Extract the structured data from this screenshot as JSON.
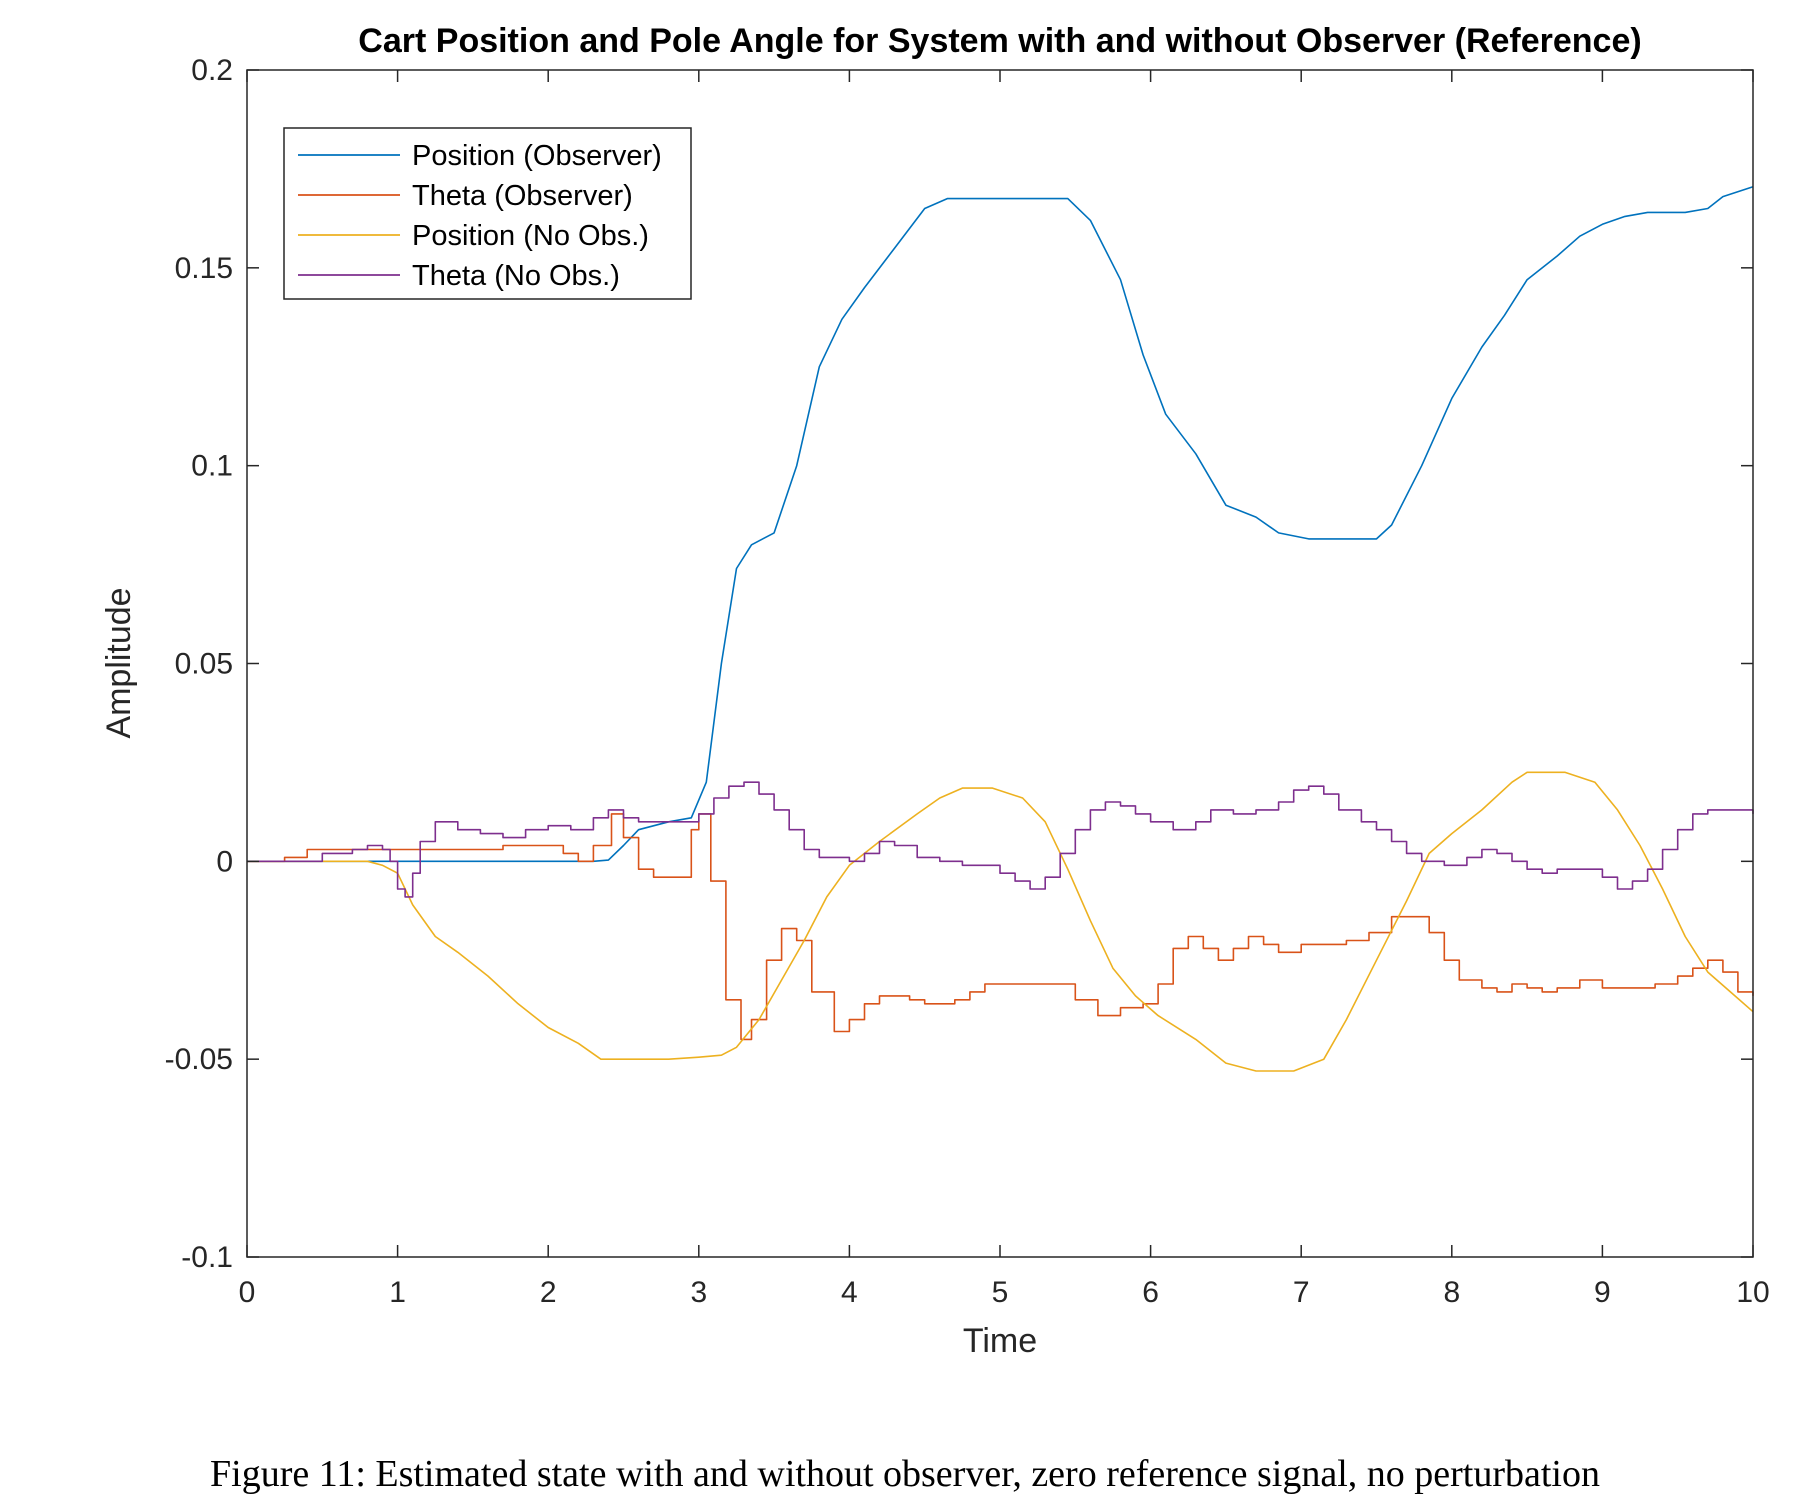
{
  "chart_data": {
    "type": "line",
    "title": "Cart Position and Pole Angle for System with and without Observer (Reference)",
    "xlabel": "Time",
    "ylabel": "Amplitude",
    "xlim": [
      0,
      10
    ],
    "ylim": [
      -0.1,
      0.2
    ],
    "xticks": [
      0,
      1,
      2,
      3,
      4,
      5,
      6,
      7,
      8,
      9,
      10
    ],
    "yticks": [
      -0.1,
      -0.05,
      0,
      0.05,
      0.1,
      0.15,
      0.2
    ],
    "x_tick_labels": [
      "0",
      "1",
      "2",
      "3",
      "4",
      "5",
      "6",
      "7",
      "8",
      "9",
      "10"
    ],
    "y_tick_labels": [
      "-0.1",
      "-0.05",
      "0",
      "0.05",
      "0.1",
      "0.15",
      "0.2"
    ],
    "grid": false,
    "legend_position": "top-left",
    "series": [
      {
        "name": "Position (Observer)",
        "color": "#0072BD",
        "step": false,
        "points": [
          [
            0,
            0
          ],
          [
            2.3,
            0
          ],
          [
            2.4,
            0.0003
          ],
          [
            2.5,
            0.004
          ],
          [
            2.6,
            0.008
          ],
          [
            2.8,
            0.01
          ],
          [
            2.95,
            0.011
          ],
          [
            3.05,
            0.02
          ],
          [
            3.15,
            0.05
          ],
          [
            3.25,
            0.074
          ],
          [
            3.35,
            0.08
          ],
          [
            3.5,
            0.083
          ],
          [
            3.65,
            0.1
          ],
          [
            3.8,
            0.125
          ],
          [
            3.95,
            0.137
          ],
          [
            4.1,
            0.145
          ],
          [
            4.3,
            0.155
          ],
          [
            4.5,
            0.165
          ],
          [
            4.65,
            0.1675
          ],
          [
            4.8,
            0.1675
          ],
          [
            5.45,
            0.1675
          ],
          [
            5.6,
            0.162
          ],
          [
            5.8,
            0.147
          ],
          [
            5.95,
            0.128
          ],
          [
            6.1,
            0.113
          ],
          [
            6.3,
            0.103
          ],
          [
            6.5,
            0.09
          ],
          [
            6.7,
            0.087
          ],
          [
            6.85,
            0.083
          ],
          [
            7.05,
            0.0815
          ],
          [
            7.5,
            0.0815
          ],
          [
            7.6,
            0.085
          ],
          [
            7.8,
            0.1
          ],
          [
            8.0,
            0.117
          ],
          [
            8.2,
            0.13
          ],
          [
            8.35,
            0.138
          ],
          [
            8.5,
            0.147
          ],
          [
            8.7,
            0.153
          ],
          [
            8.85,
            0.158
          ],
          [
            9.0,
            0.161
          ],
          [
            9.15,
            0.163
          ],
          [
            9.3,
            0.164
          ],
          [
            9.55,
            0.164
          ],
          [
            9.7,
            0.165
          ],
          [
            9.8,
            0.168
          ],
          [
            10,
            0.1705
          ]
        ]
      },
      {
        "name": "Theta (Observer)",
        "color": "#D95319",
        "step": true,
        "points": [
          [
            0,
            0
          ],
          [
            0.25,
            0.001
          ],
          [
            0.4,
            0.003
          ],
          [
            1.0,
            0.003
          ],
          [
            1.3,
            0.003
          ],
          [
            1.5,
            0.003
          ],
          [
            1.7,
            0.004
          ],
          [
            2.0,
            0.004
          ],
          [
            2.1,
            0.002
          ],
          [
            2.2,
            0.0
          ],
          [
            2.3,
            0.004
          ],
          [
            2.42,
            0.012
          ],
          [
            2.5,
            0.006
          ],
          [
            2.6,
            -0.002
          ],
          [
            2.7,
            -0.004
          ],
          [
            2.85,
            -0.004
          ],
          [
            2.95,
            0.008
          ],
          [
            3.0,
            0.012
          ],
          [
            3.08,
            -0.005
          ],
          [
            3.18,
            -0.035
          ],
          [
            3.28,
            -0.045
          ],
          [
            3.35,
            -0.04
          ],
          [
            3.45,
            -0.025
          ],
          [
            3.55,
            -0.017
          ],
          [
            3.65,
            -0.02
          ],
          [
            3.75,
            -0.033
          ],
          [
            3.9,
            -0.043
          ],
          [
            4.0,
            -0.04
          ],
          [
            4.1,
            -0.036
          ],
          [
            4.2,
            -0.034
          ],
          [
            4.4,
            -0.035
          ],
          [
            4.5,
            -0.036
          ],
          [
            4.7,
            -0.035
          ],
          [
            4.8,
            -0.033
          ],
          [
            4.9,
            -0.031
          ],
          [
            5.35,
            -0.031
          ],
          [
            5.5,
            -0.035
          ],
          [
            5.65,
            -0.039
          ],
          [
            5.8,
            -0.037
          ],
          [
            5.95,
            -0.036
          ],
          [
            6.05,
            -0.031
          ],
          [
            6.15,
            -0.022
          ],
          [
            6.25,
            -0.019
          ],
          [
            6.35,
            -0.022
          ],
          [
            6.45,
            -0.025
          ],
          [
            6.55,
            -0.022
          ],
          [
            6.65,
            -0.019
          ],
          [
            6.75,
            -0.021
          ],
          [
            6.85,
            -0.023
          ],
          [
            7.0,
            -0.021
          ],
          [
            7.15,
            -0.021
          ],
          [
            7.3,
            -0.02
          ],
          [
            7.45,
            -0.018
          ],
          [
            7.6,
            -0.014
          ],
          [
            7.75,
            -0.014
          ],
          [
            7.85,
            -0.018
          ],
          [
            7.95,
            -0.025
          ],
          [
            8.05,
            -0.03
          ],
          [
            8.2,
            -0.032
          ],
          [
            8.3,
            -0.033
          ],
          [
            8.4,
            -0.031
          ],
          [
            8.5,
            -0.032
          ],
          [
            8.6,
            -0.033
          ],
          [
            8.7,
            -0.032
          ],
          [
            8.85,
            -0.03
          ],
          [
            9.0,
            -0.032
          ],
          [
            9.2,
            -0.032
          ],
          [
            9.35,
            -0.031
          ],
          [
            9.5,
            -0.029
          ],
          [
            9.6,
            -0.027
          ],
          [
            9.7,
            -0.025
          ],
          [
            9.8,
            -0.028
          ],
          [
            9.9,
            -0.033
          ],
          [
            10,
            -0.034
          ]
        ]
      },
      {
        "name": "Position (No Obs.)",
        "color": "#EDB120",
        "step": false,
        "points": [
          [
            0,
            0
          ],
          [
            0.8,
            0
          ],
          [
            0.9,
            -0.001
          ],
          [
            1.0,
            -0.003
          ],
          [
            1.1,
            -0.011
          ],
          [
            1.25,
            -0.019
          ],
          [
            1.4,
            -0.023
          ],
          [
            1.6,
            -0.029
          ],
          [
            1.8,
            -0.036
          ],
          [
            2.0,
            -0.042
          ],
          [
            2.2,
            -0.046
          ],
          [
            2.35,
            -0.05
          ],
          [
            2.5,
            -0.05
          ],
          [
            2.8,
            -0.05
          ],
          [
            3.0,
            -0.0495
          ],
          [
            3.15,
            -0.049
          ],
          [
            3.25,
            -0.047
          ],
          [
            3.4,
            -0.04
          ],
          [
            3.55,
            -0.03
          ],
          [
            3.7,
            -0.02
          ],
          [
            3.85,
            -0.009
          ],
          [
            4.0,
            -0.001
          ],
          [
            4.2,
            0.005
          ],
          [
            4.45,
            0.012
          ],
          [
            4.6,
            0.016
          ],
          [
            4.75,
            0.0185
          ],
          [
            4.95,
            0.0185
          ],
          [
            5.15,
            0.016
          ],
          [
            5.3,
            0.01
          ],
          [
            5.45,
            -0.002
          ],
          [
            5.6,
            -0.015
          ],
          [
            5.75,
            -0.027
          ],
          [
            5.9,
            -0.034
          ],
          [
            6.05,
            -0.039
          ],
          [
            6.3,
            -0.045
          ],
          [
            6.5,
            -0.051
          ],
          [
            6.7,
            -0.053
          ],
          [
            6.95,
            -0.053
          ],
          [
            7.15,
            -0.05
          ],
          [
            7.3,
            -0.04
          ],
          [
            7.5,
            -0.025
          ],
          [
            7.7,
            -0.01
          ],
          [
            7.85,
            0.002
          ],
          [
            8.0,
            0.007
          ],
          [
            8.2,
            0.013
          ],
          [
            8.4,
            0.02
          ],
          [
            8.5,
            0.0225
          ],
          [
            8.75,
            0.0225
          ],
          [
            8.95,
            0.02
          ],
          [
            9.1,
            0.013
          ],
          [
            9.25,
            0.004
          ],
          [
            9.4,
            -0.007
          ],
          [
            9.55,
            -0.019
          ],
          [
            9.7,
            -0.028
          ],
          [
            9.85,
            -0.033
          ],
          [
            10,
            -0.038
          ]
        ]
      },
      {
        "name": "Theta (No Obs.)",
        "color": "#7E2F8E",
        "step": true,
        "points": [
          [
            0,
            0
          ],
          [
            0.5,
            0.002
          ],
          [
            0.7,
            0.003
          ],
          [
            0.8,
            0.004
          ],
          [
            0.9,
            0.003
          ],
          [
            0.95,
            0.0
          ],
          [
            1.0,
            -0.007
          ],
          [
            1.05,
            -0.009
          ],
          [
            1.1,
            -0.003
          ],
          [
            1.15,
            0.005
          ],
          [
            1.25,
            0.01
          ],
          [
            1.4,
            0.008
          ],
          [
            1.55,
            0.007
          ],
          [
            1.7,
            0.006
          ],
          [
            1.85,
            0.008
          ],
          [
            2.0,
            0.009
          ],
          [
            2.15,
            0.008
          ],
          [
            2.3,
            0.011
          ],
          [
            2.4,
            0.013
          ],
          [
            2.5,
            0.011
          ],
          [
            2.6,
            0.01
          ],
          [
            2.9,
            0.01
          ],
          [
            3.0,
            0.012
          ],
          [
            3.1,
            0.016
          ],
          [
            3.2,
            0.019
          ],
          [
            3.3,
            0.02
          ],
          [
            3.4,
            0.017
          ],
          [
            3.5,
            0.013
          ],
          [
            3.6,
            0.008
          ],
          [
            3.7,
            0.003
          ],
          [
            3.8,
            0.001
          ],
          [
            4.0,
            0.0
          ],
          [
            4.1,
            0.002
          ],
          [
            4.2,
            0.005
          ],
          [
            4.3,
            0.004
          ],
          [
            4.45,
            0.001
          ],
          [
            4.6,
            0.0
          ],
          [
            4.75,
            -0.001
          ],
          [
            4.9,
            -0.001
          ],
          [
            5.0,
            -0.003
          ],
          [
            5.1,
            -0.005
          ],
          [
            5.2,
            -0.007
          ],
          [
            5.3,
            -0.004
          ],
          [
            5.4,
            0.002
          ],
          [
            5.5,
            0.008
          ],
          [
            5.6,
            0.013
          ],
          [
            5.7,
            0.015
          ],
          [
            5.8,
            0.014
          ],
          [
            5.9,
            0.012
          ],
          [
            6.0,
            0.01
          ],
          [
            6.15,
            0.008
          ],
          [
            6.3,
            0.01
          ],
          [
            6.4,
            0.013
          ],
          [
            6.55,
            0.012
          ],
          [
            6.7,
            0.013
          ],
          [
            6.85,
            0.015
          ],
          [
            6.95,
            0.018
          ],
          [
            7.05,
            0.019
          ],
          [
            7.15,
            0.017
          ],
          [
            7.25,
            0.013
          ],
          [
            7.4,
            0.01
          ],
          [
            7.5,
            0.008
          ],
          [
            7.6,
            0.005
          ],
          [
            7.7,
            0.002
          ],
          [
            7.8,
            0.0
          ],
          [
            7.95,
            -0.001
          ],
          [
            8.1,
            0.001
          ],
          [
            8.2,
            0.003
          ],
          [
            8.3,
            0.002
          ],
          [
            8.4,
            0.0
          ],
          [
            8.5,
            -0.002
          ],
          [
            8.6,
            -0.003
          ],
          [
            8.7,
            -0.002
          ],
          [
            8.9,
            -0.002
          ],
          [
            9.0,
            -0.004
          ],
          [
            9.1,
            -0.007
          ],
          [
            9.2,
            -0.005
          ],
          [
            9.3,
            -0.002
          ],
          [
            9.4,
            0.003
          ],
          [
            9.5,
            0.008
          ],
          [
            9.6,
            0.012
          ],
          [
            9.7,
            0.013
          ],
          [
            9.85,
            0.013
          ],
          [
            10,
            0.012
          ]
        ]
      }
    ]
  },
  "caption": "Figure 11: Estimated state with and without observer, zero reference signal, no perturbation"
}
